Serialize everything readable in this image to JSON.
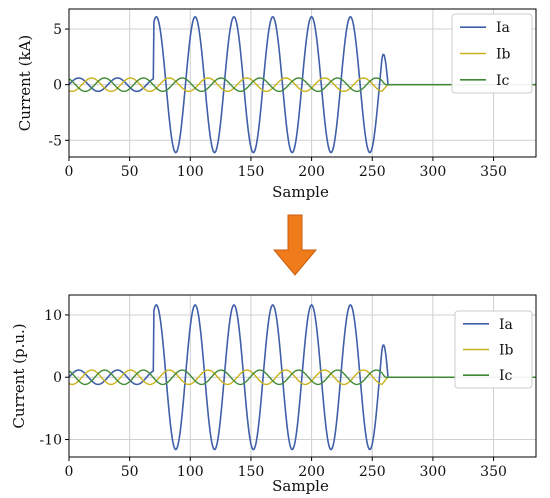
{
  "chart_data": [
    {
      "type": "line",
      "title": "",
      "xlabel": "Sample",
      "ylabel": "Current (kA)",
      "xlim": [
        0,
        385
      ],
      "ylim": [
        -6.5,
        6.8
      ],
      "xticks": [
        0,
        50,
        100,
        150,
        200,
        250,
        300,
        350
      ],
      "yticks": [
        -5,
        0,
        5
      ],
      "grid": true,
      "legend": "top-right",
      "fault": {
        "start": 70,
        "end": 258,
        "period": 32,
        "settle_end": 263
      },
      "series": [
        {
          "name": "Ia",
          "color": "#3f5fa8",
          "pre_amp": 0.6,
          "fault_amp": 6.1,
          "phase_deg": 0
        },
        {
          "name": "Ib",
          "color": "#c9b21c",
          "pre_amp": 0.6,
          "fault_amp": 0.6,
          "phase_deg": -120
        },
        {
          "name": "Ic",
          "color": "#3f8a35",
          "pre_amp": 0.6,
          "fault_amp": 0.6,
          "phase_deg": 120
        }
      ]
    },
    {
      "type": "line",
      "title": "",
      "xlabel": "Sample",
      "ylabel": "Current (p.u.)",
      "xlim": [
        0,
        385
      ],
      "ylim": [
        -12.8,
        13.2
      ],
      "xticks": [
        0,
        50,
        100,
        150,
        200,
        250,
        300,
        350
      ],
      "yticks": [
        -10,
        0,
        10
      ],
      "grid": true,
      "legend": "top-right",
      "fault": {
        "start": 70,
        "end": 258,
        "period": 32,
        "settle_end": 263
      },
      "series": [
        {
          "name": "Ia",
          "color": "#3f5fa8",
          "pre_amp": 1.15,
          "fault_amp": 11.6,
          "phase_deg": 0
        },
        {
          "name": "Ib",
          "color": "#c9b21c",
          "pre_amp": 1.15,
          "fault_amp": 1.15,
          "phase_deg": -120
        },
        {
          "name": "Ic",
          "color": "#3f8a35",
          "pre_amp": 1.15,
          "fault_amp": 1.15,
          "phase_deg": 120
        }
      ]
    }
  ],
  "arrow": {
    "color": "#f07b1a",
    "stroke": "#c85e10"
  }
}
